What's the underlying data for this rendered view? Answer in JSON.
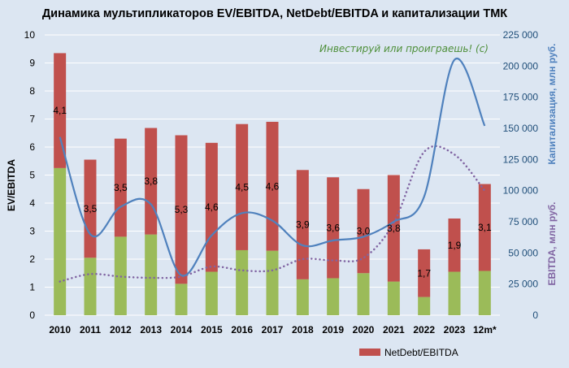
{
  "chart_data": {
    "type": "bar",
    "title": "Динамика мультипликаторов EV/EBITDA, NetDebt/EBITDA и капитализации ТМК",
    "categories": [
      "2010",
      "2011",
      "2012",
      "2013",
      "2014",
      "2015",
      "2016",
      "2017",
      "2018",
      "2019",
      "2020",
      "2021",
      "2022",
      "2023",
      "12m*"
    ],
    "ylabel": "EV/EBITDA",
    "ylim": [
      0,
      10
    ],
    "yticks": [
      "0",
      "1",
      "2",
      "3",
      "4",
      "5",
      "6",
      "7",
      "8",
      "9",
      "10"
    ],
    "y2label": "Капитализация,  млн руб.",
    "y3label": "EBITDA, млн руб.",
    "y2lim": [
      0,
      225000
    ],
    "y2ticks": [
      "0",
      "25 000",
      "50 000",
      "75 000",
      "100 000",
      "125 000",
      "150 000",
      "175 000",
      "200 000",
      "225 000"
    ],
    "annotation": "Инвестируй или проиграешь! (с)",
    "legend": [
      "NetDebt/EBITDA"
    ],
    "series": [
      {
        "name": "EV/EBITDA",
        "type": "bar",
        "color": "#9bbb59",
        "values": [
          5.25,
          2.05,
          2.8,
          2.88,
          1.12,
          1.55,
          2.32,
          2.3,
          1.28,
          1.32,
          1.5,
          1.2,
          0.65,
          1.55,
          1.58
        ]
      },
      {
        "name": "NetDebt/EBITDA",
        "type": "bar",
        "color": "#c0504d",
        "values": [
          4.1,
          3.5,
          3.5,
          3.8,
          5.3,
          4.6,
          4.5,
          4.6,
          3.9,
          3.6,
          3.0,
          3.8,
          1.7,
          1.9,
          3.1
        ],
        "labels": [
          "4,1",
          "3,5",
          "3,5",
          "3,8",
          "5,3",
          "4,6",
          "4,5",
          "4,6",
          "3,9",
          "3,6",
          "3,0",
          "3,8",
          "1,7",
          "1,9",
          "3,1"
        ]
      },
      {
        "name": "Капитализация",
        "type": "line",
        "axis": "right",
        "color": "#4f81bd",
        "values": [
          143000,
          65000,
          87000,
          89000,
          32000,
          64000,
          82000,
          76000,
          56000,
          60000,
          63000,
          75000,
          95000,
          205000,
          152000
        ]
      },
      {
        "name": "EBITDA",
        "type": "line",
        "axis": "right",
        "style": "dotted",
        "color": "#8064a2",
        "values": [
          27000,
          33000,
          31000,
          30000,
          31000,
          39000,
          36000,
          36000,
          45000,
          44000,
          46000,
          74000,
          131000,
          129000,
          100000
        ]
      }
    ]
  }
}
